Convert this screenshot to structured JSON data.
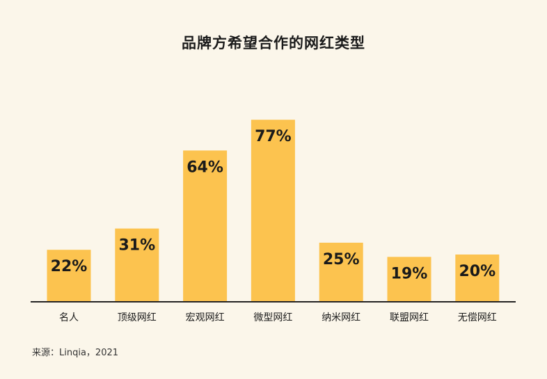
{
  "title": "品牌方希望合作的网红类型",
  "source": "来源：Linqia，2021",
  "colors": {
    "bar": "#fcc34f",
    "axis": "#222222",
    "background": "#fbf6ea",
    "text": "#1a1a1a"
  },
  "chart_data": {
    "type": "bar",
    "title": "品牌方希望合作的网红类型",
    "categories": [
      "名人",
      "顶级网红",
      "宏观网红",
      "微型网红",
      "纳米网红",
      "联盟网红",
      "无偿网红"
    ],
    "values": [
      22,
      31,
      64,
      77,
      25,
      19,
      20
    ],
    "value_labels": [
      "22%",
      "31%",
      "64%",
      "77%",
      "25%",
      "19%",
      "20%"
    ],
    "unit": "%",
    "xlabel": "",
    "ylabel": "",
    "ylim": [
      0,
      100
    ],
    "grid": false,
    "legend": "none"
  }
}
